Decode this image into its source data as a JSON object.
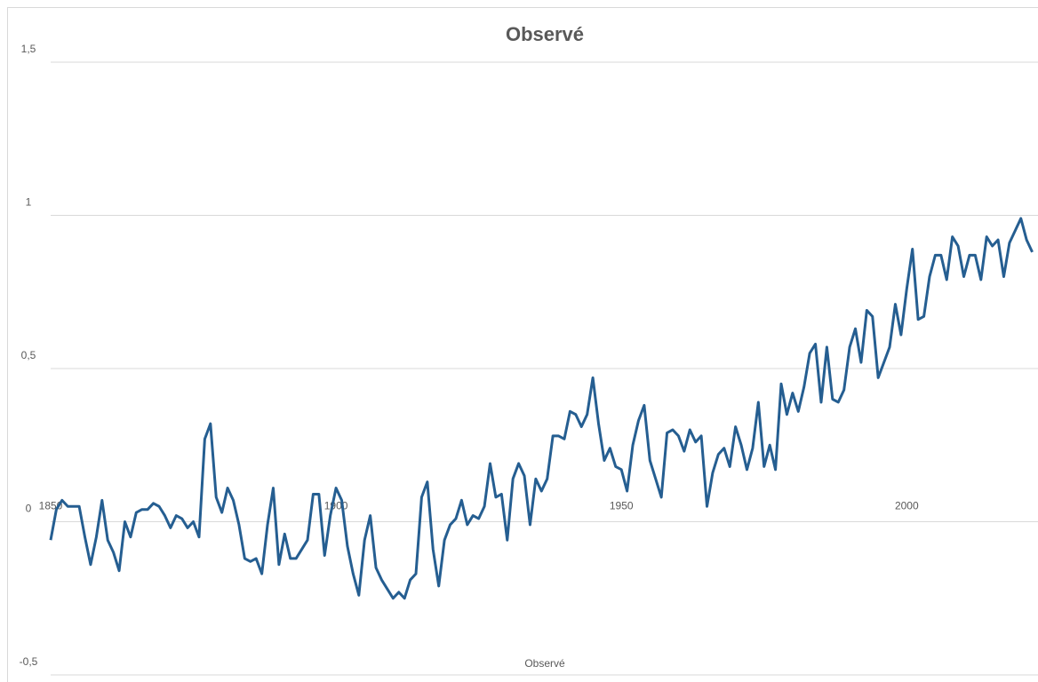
{
  "chart_data": {
    "type": "line",
    "title": "Observé",
    "x_label": "Observé",
    "x": [
      1850,
      1851,
      1852,
      1853,
      1854,
      1855,
      1856,
      1857,
      1858,
      1859,
      1860,
      1861,
      1862,
      1863,
      1864,
      1865,
      1866,
      1867,
      1868,
      1869,
      1870,
      1871,
      1872,
      1873,
      1874,
      1875,
      1876,
      1877,
      1878,
      1879,
      1880,
      1881,
      1882,
      1883,
      1884,
      1885,
      1886,
      1887,
      1888,
      1889,
      1890,
      1891,
      1892,
      1893,
      1894,
      1895,
      1896,
      1897,
      1898,
      1899,
      1900,
      1901,
      1902,
      1903,
      1904,
      1905,
      1906,
      1907,
      1908,
      1909,
      1910,
      1911,
      1912,
      1913,
      1914,
      1915,
      1916,
      1917,
      1918,
      1919,
      1920,
      1921,
      1922,
      1923,
      1924,
      1925,
      1926,
      1927,
      1928,
      1929,
      1930,
      1931,
      1932,
      1933,
      1934,
      1935,
      1936,
      1937,
      1938,
      1939,
      1940,
      1941,
      1942,
      1943,
      1944,
      1945,
      1946,
      1947,
      1948,
      1949,
      1950,
      1951,
      1952,
      1953,
      1954,
      1955,
      1956,
      1957,
      1958,
      1959,
      1960,
      1961,
      1962,
      1963,
      1964,
      1965,
      1966,
      1967,
      1968,
      1969,
      1970,
      1971,
      1972,
      1973,
      1974,
      1975,
      1976,
      1977,
      1978,
      1979,
      1980,
      1981,
      1982,
      1983,
      1984,
      1985,
      1986,
      1987,
      1988,
      1989,
      1990,
      1991,
      1992,
      1993,
      1994,
      1995,
      1996,
      1997,
      1998,
      1999,
      2000,
      2001,
      2002,
      2003,
      2004,
      2005,
      2006,
      2007,
      2008,
      2009,
      2010,
      2011,
      2012,
      2013,
      2014,
      2015,
      2016,
      2017,
      2018,
      2019,
      2020,
      2021,
      2022
    ],
    "values": [
      -0.06,
      0.04,
      0.07,
      0.05,
      0.05,
      0.05,
      -0.05,
      -0.14,
      -0.05,
      0.07,
      -0.06,
      -0.1,
      -0.16,
      0.0,
      -0.05,
      0.03,
      0.04,
      0.04,
      0.06,
      0.05,
      0.02,
      -0.02,
      0.02,
      0.01,
      -0.02,
      0.0,
      -0.05,
      0.27,
      0.32,
      0.08,
      0.03,
      0.11,
      0.07,
      -0.01,
      -0.12,
      -0.13,
      -0.12,
      -0.17,
      -0.01,
      0.11,
      -0.14,
      -0.04,
      -0.12,
      -0.12,
      -0.09,
      -0.06,
      0.09,
      0.09,
      -0.11,
      0.02,
      0.11,
      0.07,
      -0.08,
      -0.17,
      -0.24,
      -0.06,
      0.02,
      -0.15,
      -0.19,
      -0.22,
      -0.25,
      -0.23,
      -0.25,
      -0.19,
      -0.17,
      0.08,
      0.13,
      -0.09,
      -0.21,
      -0.06,
      -0.01,
      0.01,
      0.07,
      -0.01,
      0.02,
      0.01,
      0.05,
      0.19,
      0.08,
      0.09,
      -0.06,
      0.14,
      0.19,
      0.15,
      -0.01,
      0.14,
      0.1,
      0.14,
      0.28,
      0.28,
      0.27,
      0.36,
      0.35,
      0.31,
      0.35,
      0.47,
      0.32,
      0.2,
      0.24,
      0.18,
      0.17,
      0.1,
      0.25,
      0.33,
      0.38,
      0.2,
      0.14,
      0.08,
      0.29,
      0.3,
      0.28,
      0.23,
      0.3,
      0.26,
      0.28,
      0.05,
      0.16,
      0.22,
      0.24,
      0.18,
      0.31,
      0.25,
      0.17,
      0.24,
      0.39,
      0.18,
      0.25,
      0.17,
      0.45,
      0.35,
      0.42,
      0.36,
      0.44,
      0.55,
      0.58,
      0.39,
      0.57,
      0.4,
      0.39,
      0.43,
      0.57,
      0.63,
      0.52,
      0.69,
      0.67,
      0.47,
      0.52,
      0.57,
      0.71,
      0.61,
      0.76,
      0.89,
      0.66,
      0.67,
      0.8,
      0.87,
      0.87,
      0.79,
      0.93,
      0.9,
      0.8,
      0.87,
      0.87,
      0.79,
      0.93,
      0.9,
      0.92,
      0.8,
      0.91,
      0.95,
      0.99,
      0.92,
      0.88
    ],
    "color": "#255e91",
    "xlim": [
      1850,
      2023
    ],
    "xticks": [
      1850,
      1900,
      1950,
      2000
    ],
    "ylim": [
      -0.5,
      1.5
    ],
    "yticks": [
      {
        "value": -0.5,
        "label": "-0,5"
      },
      0,
      {
        "value": 0.5,
        "label": "0,5"
      },
      1,
      {
        "value": 1.5,
        "label": "1,5"
      }
    ],
    "grid": true
  }
}
